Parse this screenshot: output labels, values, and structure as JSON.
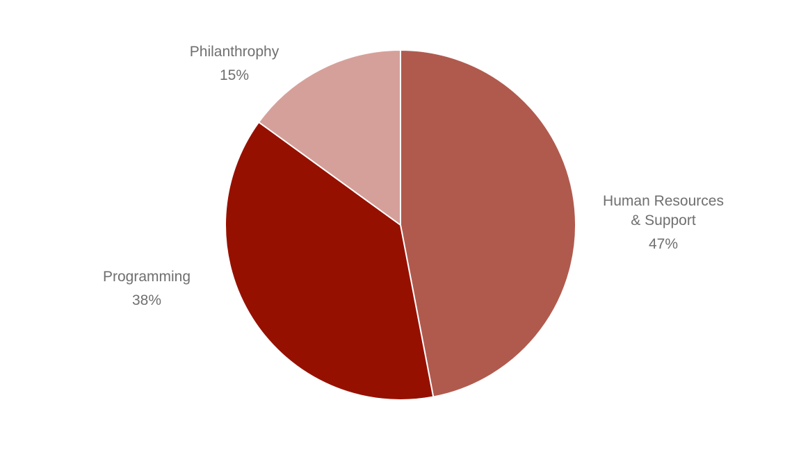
{
  "chart_data": {
    "type": "pie",
    "title": "",
    "slices": [
      {
        "label_lines": [
          "Human Resources",
          "& Support"
        ],
        "value_label": "47%",
        "value": 47,
        "color": "#b05a4e"
      },
      {
        "label_lines": [
          "Programming"
        ],
        "value_label": "38%",
        "value": 38,
        "color": "#961000"
      },
      {
        "label_lines": [
          "Philanthrophy"
        ],
        "value_label": "15%",
        "value": 15,
        "color": "#d6a09a"
      }
    ],
    "start_angle_deg": 0,
    "direction": "clockwise",
    "legend": "none",
    "labels_position": "outside"
  }
}
